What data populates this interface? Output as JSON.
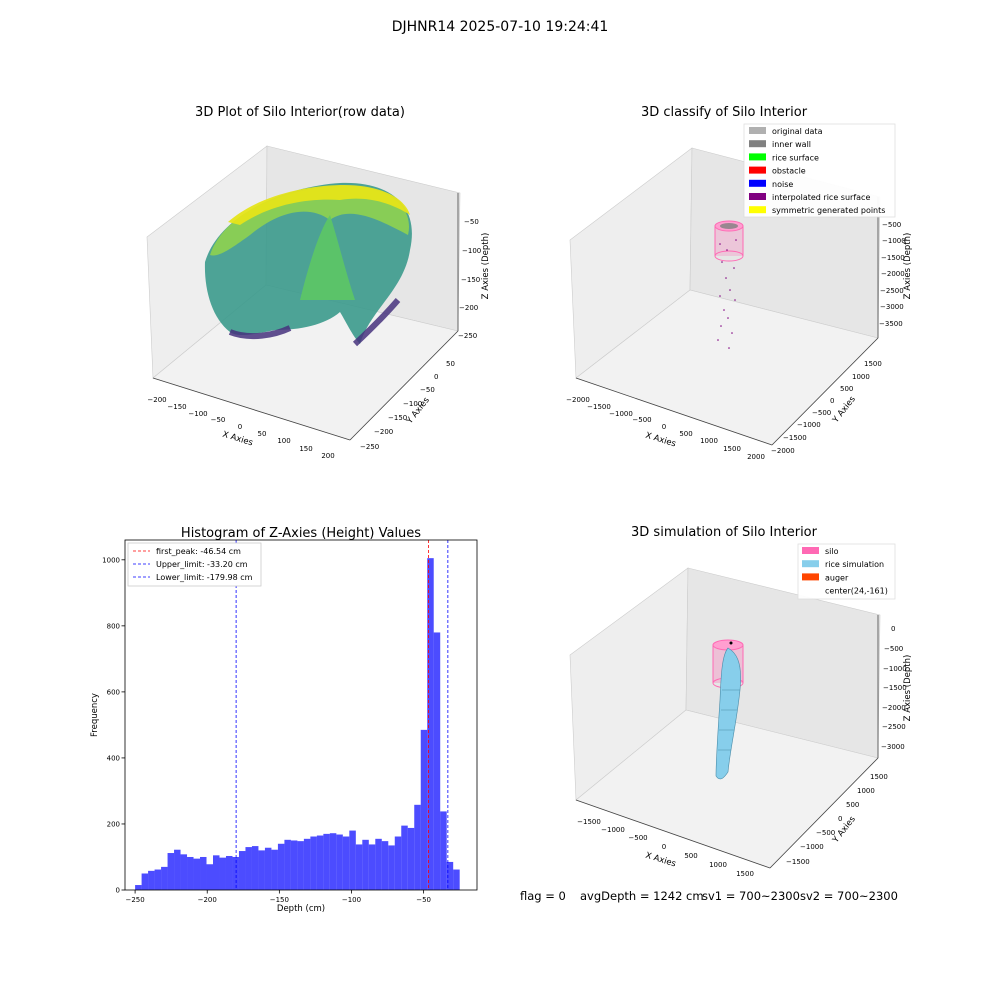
{
  "figure": {
    "suptitle": "DJHNR14 2025-07-10 19:24:41",
    "status": {
      "flag": "flag = 0",
      "avg_depth": "avgDepth = 1242 cm",
      "sv1": "sv1 = 700~2300",
      "sv2": "sv2 = 700~2300"
    }
  },
  "chart_data": [
    {
      "type": "scatter3d",
      "title": "3D Plot of Silo Interior(row data)",
      "xlabel": "X Axies",
      "ylabel": "Y Axies",
      "zlabel": "Z Axies (Depth)",
      "xticks": [
        "−200",
        "−150",
        "−100",
        "−50",
        "0",
        "50",
        "100",
        "150",
        "200"
      ],
      "yticks": [
        "50",
        "0",
        "−50",
        "−100",
        "−150",
        "−200",
        "−250"
      ],
      "zticks": [
        "−50",
        "−100",
        "−150",
        "−200",
        "−250"
      ],
      "xlim": [
        -210,
        210
      ],
      "ylim": [
        -260,
        60
      ],
      "zlim": [
        -260,
        -30
      ],
      "colormap": [
        "#440154",
        "#3b528b",
        "#21918c",
        "#5ec962",
        "#fde725"
      ],
      "surface": "bowl-shaped point cloud, raised cone at center, depth from about -30 to -250"
    },
    {
      "type": "scatter3d",
      "title": "3D classify of Silo Interior",
      "xlabel": "X Axies",
      "ylabel": "Y Axies",
      "zlabel": "Z Axies (Depth)",
      "xticks": [
        "−2000",
        "−1500",
        "−1000",
        "−500",
        "0",
        "500",
        "1000",
        "1500",
        "2000"
      ],
      "yticks": [
        "1500",
        "1000",
        "500",
        "0",
        "−500",
        "−1000",
        "−1500",
        "−2000"
      ],
      "zticks": [
        "−500",
        "−1000",
        "−1500",
        "−2000",
        "−2500",
        "−3000",
        "−3500"
      ],
      "legend": [
        {
          "label": "original data",
          "color": "#b0b0b0"
        },
        {
          "label": "inner wall",
          "color": "#808080"
        },
        {
          "label": "rice surface",
          "color": "#00ff00"
        },
        {
          "label": "obstacle",
          "color": "#ff0000"
        },
        {
          "label": "noise",
          "color": "#0000ff"
        },
        {
          "label": "interpolated rice surface",
          "color": "#800080"
        },
        {
          "label": "symmetric generated points",
          "color": "#ffff00"
        }
      ]
    },
    {
      "type": "bar",
      "title": "Histogram of Z-Axies (Height) Values",
      "xlabel": "Depth (cm)",
      "ylabel": "Frequency",
      "xlim": [
        -257,
        -13
      ],
      "ylim": [
        0,
        1060
      ],
      "xticks": [
        -250,
        -200,
        -150,
        -100,
        -50
      ],
      "xticklabels": [
        "−250",
        "−200",
        "−150",
        "−100",
        "−50"
      ],
      "yticks": [
        0,
        200,
        400,
        600,
        800,
        1000
      ],
      "bar_color": "#0000ff",
      "bin_start": -250,
      "bin_width": 4.5,
      "values": [
        15,
        50,
        58,
        62,
        70,
        112,
        122,
        108,
        100,
        95,
        100,
        78,
        105,
        98,
        103,
        100,
        118,
        130,
        133,
        120,
        128,
        122,
        140,
        152,
        150,
        148,
        155,
        162,
        165,
        170,
        172,
        168,
        162,
        180,
        138,
        152,
        138,
        155,
        148,
        135,
        162,
        195,
        188,
        258,
        485,
        1005,
        780,
        238,
        85,
        62
      ],
      "vlines": [
        {
          "label": "first_peak: -46.54 cm",
          "x": -46.54,
          "color": "#ff0000"
        },
        {
          "label": "Upper_limit: -33.20 cm",
          "x": -33.2,
          "color": "#0000ff"
        },
        {
          "label": "Lower_limit: -179.98 cm",
          "x": -179.98,
          "color": "#0000ff"
        }
      ]
    },
    {
      "type": "surface3d",
      "title": "3D simulation of Silo Interior",
      "xlabel": "X Axies",
      "ylabel": "Y Axies",
      "zlabel": "Z Axies (Depth)",
      "xticks": [
        "−1500",
        "−1000",
        "−500",
        "0",
        "500",
        "1000",
        "1500"
      ],
      "yticks": [
        "1500",
        "1000",
        "500",
        "0",
        "−500",
        "−1000",
        "−1500"
      ],
      "zticks": [
        "0",
        "−500",
        "−1000",
        "−1500",
        "−2000",
        "−2500",
        "−3000"
      ],
      "legend": [
        {
          "label": "silo",
          "color": "#ff69b4"
        },
        {
          "label": "rice simulation",
          "color": "#87ceeb"
        },
        {
          "label": "auger",
          "color": "#ff4500"
        },
        {
          "label": "center(24,-161)",
          "color": "none"
        }
      ]
    }
  ]
}
